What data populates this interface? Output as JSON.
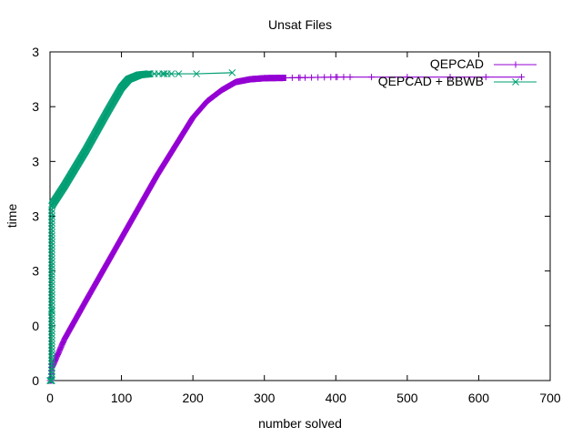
{
  "chart_data": {
    "type": "line",
    "title": "Unsat Files",
    "xlabel": "number solved",
    "ylabel": "time",
    "xlim": [
      0,
      700
    ],
    "ylim": [
      0,
      6
    ],
    "x_ticks": [
      "0",
      "100",
      "200",
      "300",
      "400",
      "500",
      "600",
      "700"
    ],
    "y_tick_labels": [
      "0",
      "0",
      "3",
      "3",
      "3",
      "3",
      "3"
    ],
    "grid": false,
    "legend_position": "top-right",
    "series": [
      {
        "name": "QEPCAD",
        "color": "#9400d3",
        "marker": "plus",
        "points": [
          [
            0,
            0.0
          ],
          [
            1,
            0.0
          ],
          [
            2,
            0.15
          ],
          [
            3,
            0.25
          ],
          [
            5,
            0.3
          ],
          [
            20,
            0.75
          ],
          [
            50,
            1.45
          ],
          [
            100,
            2.6
          ],
          [
            150,
            3.75
          ],
          [
            200,
            4.8
          ],
          [
            220,
            5.1
          ],
          [
            240,
            5.3
          ],
          [
            260,
            5.45
          ],
          [
            280,
            5.5
          ],
          [
            300,
            5.52
          ],
          [
            350,
            5.53
          ],
          [
            400,
            5.54
          ],
          [
            450,
            5.54
          ],
          [
            500,
            5.54
          ],
          [
            560,
            5.54
          ],
          [
            610,
            5.54
          ],
          [
            660,
            5.54
          ]
        ]
      },
      {
        "name": "QEPCAD + BBWB",
        "color": "#009e73",
        "marker": "cross",
        "points": [
          [
            0,
            0.0
          ],
          [
            1,
            0.0
          ],
          [
            2,
            0.0
          ],
          [
            3,
            3.2
          ],
          [
            5,
            3.25
          ],
          [
            20,
            3.55
          ],
          [
            50,
            4.2
          ],
          [
            80,
            4.9
          ],
          [
            100,
            5.35
          ],
          [
            110,
            5.5
          ],
          [
            125,
            5.58
          ],
          [
            140,
            5.6
          ],
          [
            160,
            5.6
          ],
          [
            180,
            5.6
          ],
          [
            205,
            5.6
          ],
          [
            255,
            5.62
          ]
        ]
      }
    ]
  }
}
